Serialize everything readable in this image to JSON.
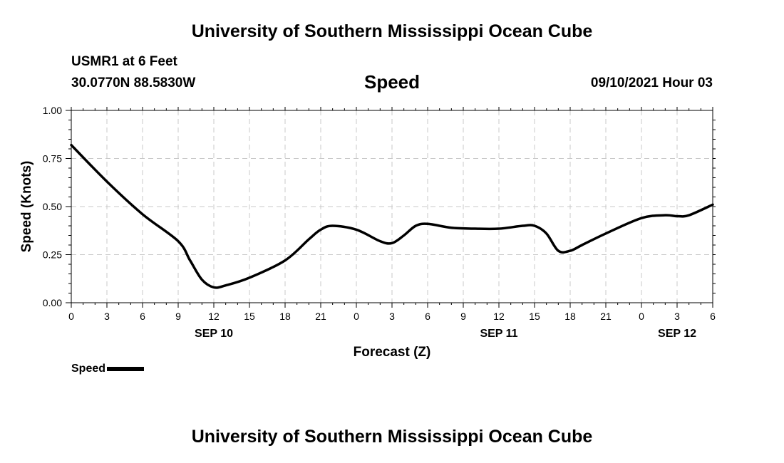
{
  "header": {
    "title": "University of Southern Mississippi Ocean Cube",
    "station": "USMR1 at 6 Feet",
    "coordinates": "30.0770N  88.5830W",
    "parameter": "Speed",
    "datetime": "09/10/2021 Hour 03"
  },
  "footer": {
    "title": "University of Southern Mississippi Ocean Cube"
  },
  "legend": {
    "label": "Speed"
  },
  "chart_data": {
    "type": "line",
    "title": "Speed",
    "xlabel": "Forecast (Z)",
    "ylabel": "Speed (Knots)",
    "ylim": [
      0,
      1
    ],
    "xlim": [
      0,
      54
    ],
    "yticks": [
      0,
      0.25,
      0.5,
      0.75,
      1.0
    ],
    "ytick_labels": [
      "0.00",
      "0.25",
      "0.50",
      "0.75",
      "1.00"
    ],
    "xticks": [
      0,
      3,
      6,
      9,
      12,
      15,
      18,
      21,
      24,
      27,
      30,
      33,
      36,
      39,
      42,
      45,
      48,
      51,
      54
    ],
    "xtick_labels": [
      "0",
      "3",
      "6",
      "9",
      "12",
      "15",
      "18",
      "21",
      "0",
      "3",
      "6",
      "9",
      "12",
      "15",
      "18",
      "21",
      "0",
      "3",
      "6"
    ],
    "date_labels": [
      {
        "hour": 12,
        "label": "SEP 10"
      },
      {
        "hour": 36,
        "label": "SEP 11"
      },
      {
        "hour": 51,
        "label": "SEP 12"
      }
    ],
    "grid": true,
    "series": [
      {
        "name": "Speed",
        "color": "#000000",
        "x": [
          0,
          3,
          6,
          9,
          10,
          11,
          12,
          13,
          15,
          18,
          20,
          21,
          22,
          24,
          26,
          27,
          28,
          29,
          30,
          32,
          34,
          36,
          38,
          39,
          40,
          41,
          42,
          43,
          45,
          48,
          50,
          51,
          52,
          54
        ],
        "values": [
          0.82,
          0.63,
          0.46,
          0.32,
          0.22,
          0.12,
          0.08,
          0.09,
          0.13,
          0.22,
          0.33,
          0.38,
          0.4,
          0.38,
          0.32,
          0.31,
          0.35,
          0.4,
          0.41,
          0.39,
          0.385,
          0.385,
          0.4,
          0.4,
          0.36,
          0.27,
          0.27,
          0.3,
          0.36,
          0.44,
          0.455,
          0.45,
          0.455,
          0.51
        ]
      }
    ]
  }
}
